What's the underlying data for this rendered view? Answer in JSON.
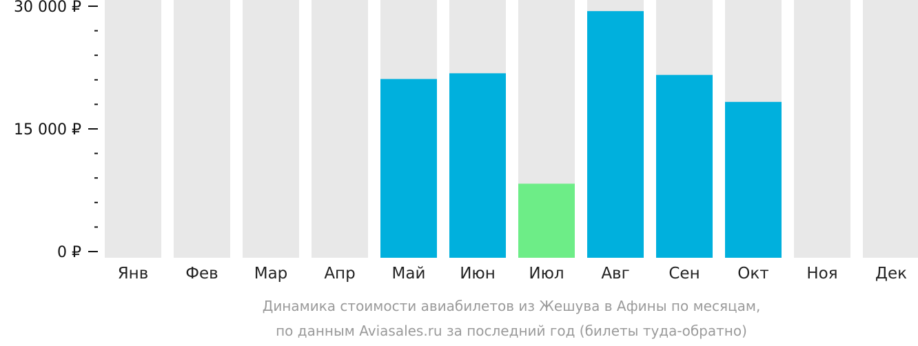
{
  "chart_data": {
    "type": "bar",
    "categories": [
      "Янв",
      "Фев",
      "Мар",
      "Апр",
      "Май",
      "Июн",
      "Июл",
      "Авг",
      "Сен",
      "Окт",
      "Ноя",
      "Дек"
    ],
    "values": [
      null,
      null,
      null,
      null,
      21100,
      21800,
      8300,
      29400,
      21600,
      18300,
      null,
      null
    ],
    "highlight_index": 6,
    "ylim": [
      0,
      30000
    ],
    "y_major_ticks": [
      {
        "value": 0,
        "label": "0 ₽"
      },
      {
        "value": 15000,
        "label": "15 000 ₽"
      },
      {
        "value": 30000,
        "label": "30 000 ₽"
      }
    ],
    "y_minor_ticks": [
      3000,
      6000,
      9000,
      12000,
      18000,
      21000,
      24000,
      27000
    ],
    "title": "",
    "xlabel": "",
    "ylabel": "",
    "grid": false,
    "legend": "none"
  },
  "caption": {
    "line1": "Динамика стоимости авиабилетов из Жешува в Афины по месяцам,",
    "line2": "по данным Aviasales.ru за последний год (билеты туда-обратно)"
  },
  "colors": {
    "background_column": "#e8e8e8",
    "bar": "#00b0dd",
    "bar_highlight": "#6ded87",
    "axis": "#111111",
    "caption": "#9a9a9a"
  }
}
